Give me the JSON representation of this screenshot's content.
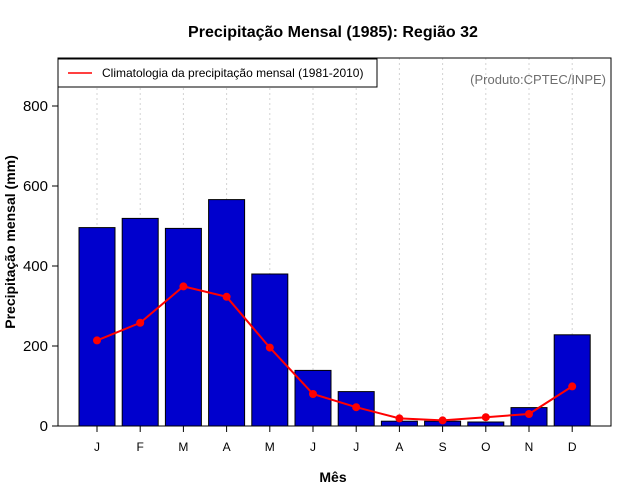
{
  "chart_data": {
    "type": "bar",
    "title": "Precipitação Mensal (1985): Região 32",
    "xlabel": "Mês",
    "ylabel": "Precipitação mensal (mm)",
    "categories": [
      "J",
      "F",
      "M",
      "A",
      "M",
      "J",
      "J",
      "A",
      "S",
      "O",
      "N",
      "D"
    ],
    "ylim": [
      0,
      920
    ],
    "yticks": [
      0,
      200,
      400,
      600,
      800
    ],
    "series": [
      {
        "name": "Precipitação mensal 1985",
        "type": "bar",
        "color": "#0000cd",
        "values": [
          496,
          519,
          494,
          566,
          380,
          139,
          86,
          12,
          12,
          10,
          46,
          228
        ]
      },
      {
        "name": "Climatologia da precipitação mensal (1981-2010)",
        "type": "line",
        "color": "#ff0000",
        "values": [
          214,
          258,
          349,
          323,
          196,
          80,
          47,
          19,
          14,
          22,
          30,
          99
        ]
      }
    ],
    "legend": {
      "position": "top-left",
      "entries": [
        "Climatologia da precipitação mensal (1981-2010)"
      ]
    },
    "annotation": "(Produto:CPTEC/INPE)",
    "grid": "vertical-dashed"
  }
}
